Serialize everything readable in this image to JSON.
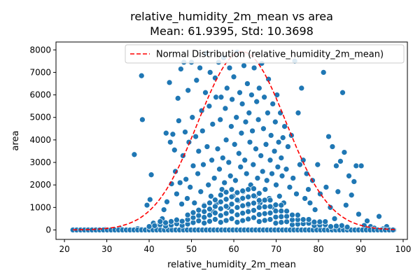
{
  "chart_data": {
    "type": "scatter",
    "title": "relative_humidity_2m_mean vs area",
    "subtitle": "Mean: 61.9395, Std: 10.3698",
    "xlabel": "relative_humidity_2m_mean",
    "ylabel": "area",
    "xlim": [
      18,
      101
    ],
    "ylim": [
      -420,
      8350
    ],
    "xticks": [
      20,
      30,
      40,
      50,
      60,
      70,
      80,
      90,
      100
    ],
    "yticks": [
      0,
      1000,
      2000,
      3000,
      4000,
      5000,
      6000,
      7000,
      8000
    ],
    "grid": false,
    "legend": {
      "placement": "top-right",
      "entries": [
        {
          "label": "Normal Distribution (relative_humidity_2m_mean)",
          "style": "dashed-line"
        }
      ]
    },
    "series": [
      {
        "kind": "scatter",
        "color": "#1f77b4",
        "points": [
          [
            22.3,
            0
          ],
          [
            25.2,
            0
          ],
          [
            27.1,
            0
          ],
          [
            29.5,
            20
          ],
          [
            31.0,
            0
          ],
          [
            33.4,
            40
          ],
          [
            34.7,
            0
          ],
          [
            36.1,
            0
          ],
          [
            37.3,
            60
          ],
          [
            38.2,
            30
          ],
          [
            36.5,
            3350
          ],
          [
            38.2,
            6850
          ],
          [
            38.4,
            4900
          ],
          [
            39.5,
            1100
          ],
          [
            40.2,
            1350
          ],
          [
            40.5,
            2450
          ],
          [
            41.0,
            300
          ],
          [
            42.2,
            200
          ],
          [
            43.1,
            500
          ],
          [
            43.5,
            900
          ],
          [
            44.0,
            4300
          ],
          [
            44.2,
            1250
          ],
          [
            44.8,
            6550
          ],
          [
            45.0,
            3900
          ],
          [
            45.3,
            2050
          ],
          [
            45.6,
            4250
          ],
          [
            46.0,
            3550
          ],
          [
            46.2,
            2600
          ],
          [
            46.5,
            1600
          ],
          [
            46.8,
            5850
          ],
          [
            47.0,
            4850
          ],
          [
            47.3,
            2100
          ],
          [
            47.5,
            7150
          ],
          [
            47.7,
            1150
          ],
          [
            48.0,
            3300
          ],
          [
            48.2,
            7450
          ],
          [
            48.5,
            4350
          ],
          [
            48.7,
            2250
          ],
          [
            49.0,
            1400
          ],
          [
            49.2,
            6200
          ],
          [
            49.4,
            3900
          ],
          [
            49.7,
            1900
          ],
          [
            50.0,
            7450
          ],
          [
            50.2,
            5000
          ],
          [
            50.4,
            2850
          ],
          [
            50.7,
            1200
          ],
          [
            51.0,
            4150
          ],
          [
            51.2,
            6650
          ],
          [
            51.5,
            2500
          ],
          [
            51.7,
            3500
          ],
          [
            52.0,
            7200
          ],
          [
            52.2,
            1700
          ],
          [
            52.4,
            5300
          ],
          [
            52.6,
            4400
          ],
          [
            52.8,
            2900
          ],
          [
            53.0,
            1100
          ],
          [
            53.3,
            6100
          ],
          [
            53.5,
            7850
          ],
          [
            53.7,
            3700
          ],
          [
            54.0,
            2000
          ],
          [
            54.2,
            5500
          ],
          [
            54.4,
            7000
          ],
          [
            54.6,
            1500
          ],
          [
            54.8,
            3100
          ],
          [
            55.0,
            4700
          ],
          [
            55.2,
            800
          ],
          [
            55.4,
            2300
          ],
          [
            55.6,
            6750
          ],
          [
            55.8,
            5900
          ],
          [
            56.0,
            1200
          ],
          [
            56.2,
            3600
          ],
          [
            56.4,
            7450
          ],
          [
            56.6,
            2700
          ],
          [
            56.8,
            4900
          ],
          [
            57.0,
            5900
          ],
          [
            57.2,
            1800
          ],
          [
            57.4,
            3200
          ],
          [
            57.6,
            7650
          ],
          [
            57.8,
            2100
          ],
          [
            58.0,
            5400
          ],
          [
            58.2,
            4000
          ],
          [
            58.4,
            6300
          ],
          [
            58.6,
            1000
          ],
          [
            58.8,
            3000
          ],
          [
            59.0,
            7200
          ],
          [
            59.2,
            2400
          ],
          [
            59.4,
            4600
          ],
          [
            59.6,
            5800
          ],
          [
            59.8,
            1500
          ],
          [
            60.0,
            6800
          ],
          [
            60.2,
            3800
          ],
          [
            60.4,
            2200
          ],
          [
            60.6,
            5000
          ],
          [
            60.8,
            7900
          ],
          [
            61.0,
            1300
          ],
          [
            61.2,
            3400
          ],
          [
            61.4,
            6100
          ],
          [
            61.6,
            2800
          ],
          [
            61.8,
            4300
          ],
          [
            62.0,
            5600
          ],
          [
            62.2,
            1700
          ],
          [
            62.4,
            7300
          ],
          [
            62.6,
            3100
          ],
          [
            62.8,
            4800
          ],
          [
            63.0,
            2500
          ],
          [
            63.2,
            6500
          ],
          [
            63.4,
            1100
          ],
          [
            63.6,
            5200
          ],
          [
            63.8,
            3900
          ],
          [
            64.0,
            2000
          ],
          [
            64.2,
            6000
          ],
          [
            64.4,
            4400
          ],
          [
            64.6,
            2900
          ],
          [
            64.8,
            7200
          ],
          [
            65.0,
            1500
          ],
          [
            65.2,
            3600
          ],
          [
            65.4,
            5700
          ],
          [
            65.6,
            2300
          ],
          [
            65.8,
            4900
          ],
          [
            66.0,
            6300
          ],
          [
            66.2,
            1200
          ],
          [
            66.4,
            3300
          ],
          [
            66.6,
            7400
          ],
          [
            66.8,
            2600
          ],
          [
            67.0,
            4500
          ],
          [
            67.2,
            5900
          ],
          [
            67.4,
            1800
          ],
          [
            67.6,
            3800
          ],
          [
            67.8,
            2200
          ],
          [
            68.0,
            5200
          ],
          [
            68.2,
            6700
          ],
          [
            68.4,
            1400
          ],
          [
            68.6,
            3100
          ],
          [
            68.8,
            4200
          ],
          [
            69.0,
            2500
          ],
          [
            69.2,
            5600
          ],
          [
            69.4,
            1000
          ],
          [
            69.6,
            3500
          ],
          [
            69.8,
            4800
          ],
          [
            70.0,
            2000
          ],
          [
            70.2,
            6000
          ],
          [
            70.4,
            2800
          ],
          [
            70.6,
            3900
          ],
          [
            70.8,
            1500
          ],
          [
            71.0,
            5200
          ],
          [
            71.2,
            3200
          ],
          [
            71.4,
            2400
          ],
          [
            71.6,
            4100
          ],
          [
            71.8,
            1200
          ],
          [
            72.0,
            4600
          ],
          [
            72.4,
            2700
          ],
          [
            72.8,
            3700
          ],
          [
            73.2,
            1900
          ],
          [
            73.6,
            4200
          ],
          [
            74.0,
            2300
          ],
          [
            74.4,
            7500
          ],
          [
            74.8,
            1600
          ],
          [
            75.2,
            5200
          ],
          [
            75.6,
            2900
          ],
          [
            76.0,
            6300
          ],
          [
            76.4,
            3100
          ],
          [
            76.8,
            1400
          ],
          [
            77.2,
            2500
          ],
          [
            77.6,
            1800
          ],
          [
            78.0,
            1200
          ],
          [
            78.6,
            2200
          ],
          [
            79.2,
            900
          ],
          [
            79.8,
            2900
          ],
          [
            80.4,
            1600
          ],
          [
            81.2,
            7000
          ],
          [
            81.8,
            1900
          ],
          [
            82.4,
            4150
          ],
          [
            82.8,
            1000
          ],
          [
            83.3,
            3700
          ],
          [
            83.8,
            500
          ],
          [
            84.2,
            2850
          ],
          [
            84.6,
            1700
          ],
          [
            85.2,
            3050
          ],
          [
            85.7,
            6100
          ],
          [
            86.1,
            3450
          ],
          [
            86.5,
            1100
          ],
          [
            87.2,
            2400
          ],
          [
            87.8,
            1550
          ],
          [
            88.4,
            2150
          ],
          [
            88.9,
            2850
          ],
          [
            89.5,
            700
          ],
          [
            90.1,
            2850
          ],
          [
            90.8,
            200
          ],
          [
            91.5,
            400
          ],
          [
            92.3,
            150
          ],
          [
            93.2,
            80
          ],
          [
            94.3,
            600
          ],
          [
            95.2,
            50
          ],
          [
            96.1,
            150
          ],
          [
            97.0,
            0
          ],
          [
            97.8,
            0
          ]
        ]
      },
      {
        "kind": "normal-curve",
        "label": "Normal Distribution (relative_humidity_2m_mean)",
        "color": "#ff0000",
        "mean": 61.9395,
        "std": 10.3698,
        "peak": 7920,
        "x_range": [
          22,
          98
        ]
      }
    ]
  }
}
